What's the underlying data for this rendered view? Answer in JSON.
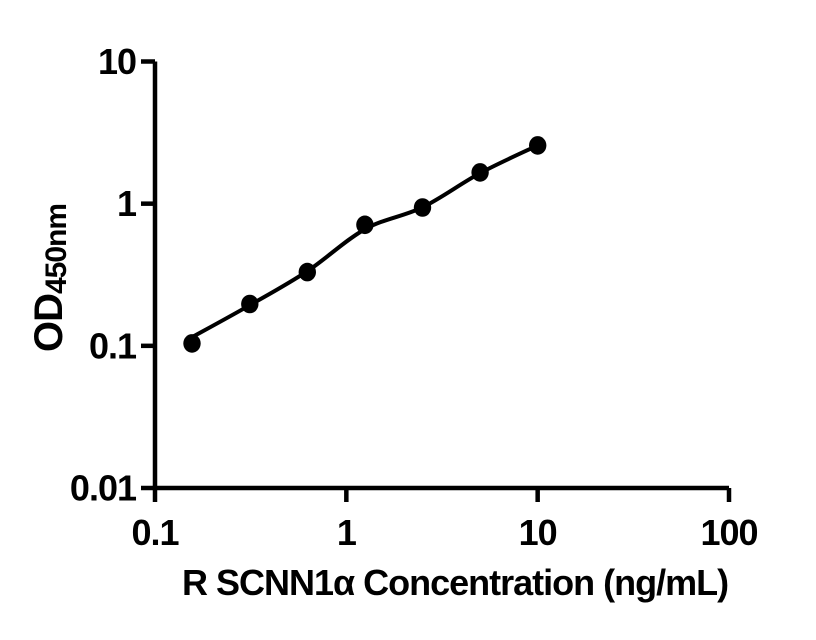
{
  "figure": {
    "background": "#ffffff",
    "foreground": "#000000"
  },
  "chart_data": {
    "type": "scatter",
    "xlabel": "R SCNN1α Concentration (ng/mL)",
    "ylabel": "OD",
    "ylabel_subscript": "450nm",
    "x_scale": "log",
    "y_scale": "log",
    "xlim": [
      0.1,
      100
    ],
    "ylim": [
      0.01,
      10
    ],
    "x_ticks": [
      0.1,
      1,
      10,
      100
    ],
    "x_tick_labels": [
      "0.1",
      "1",
      "10",
      "100"
    ],
    "y_ticks": [
      0.01,
      0.1,
      1,
      10
    ],
    "y_tick_labels": [
      "0.01",
      "0.1",
      "1",
      "10"
    ],
    "grid": false,
    "legend": "none",
    "marker_color": "#000000",
    "line_color": "#000000",
    "series": [
      {
        "points": [
          {
            "x": 0.156,
            "y": 0.104
          },
          {
            "x": 0.313,
            "y": 0.197
          },
          {
            "x": 0.625,
            "y": 0.33
          },
          {
            "x": 1.25,
            "y": 0.71
          },
          {
            "x": 2.5,
            "y": 0.94
          },
          {
            "x": 5,
            "y": 1.66
          },
          {
            "x": 10,
            "y": 2.57
          }
        ],
        "fit_curve": [
          {
            "x": 0.156,
            "y": 0.115
          },
          {
            "x": 0.313,
            "y": 0.193
          },
          {
            "x": 0.625,
            "y": 0.335
          },
          {
            "x": 1.25,
            "y": 0.661
          },
          {
            "x": 2.5,
            "y": 0.943
          },
          {
            "x": 5,
            "y": 1.64
          },
          {
            "x": 10,
            "y": 2.57
          }
        ]
      }
    ]
  }
}
